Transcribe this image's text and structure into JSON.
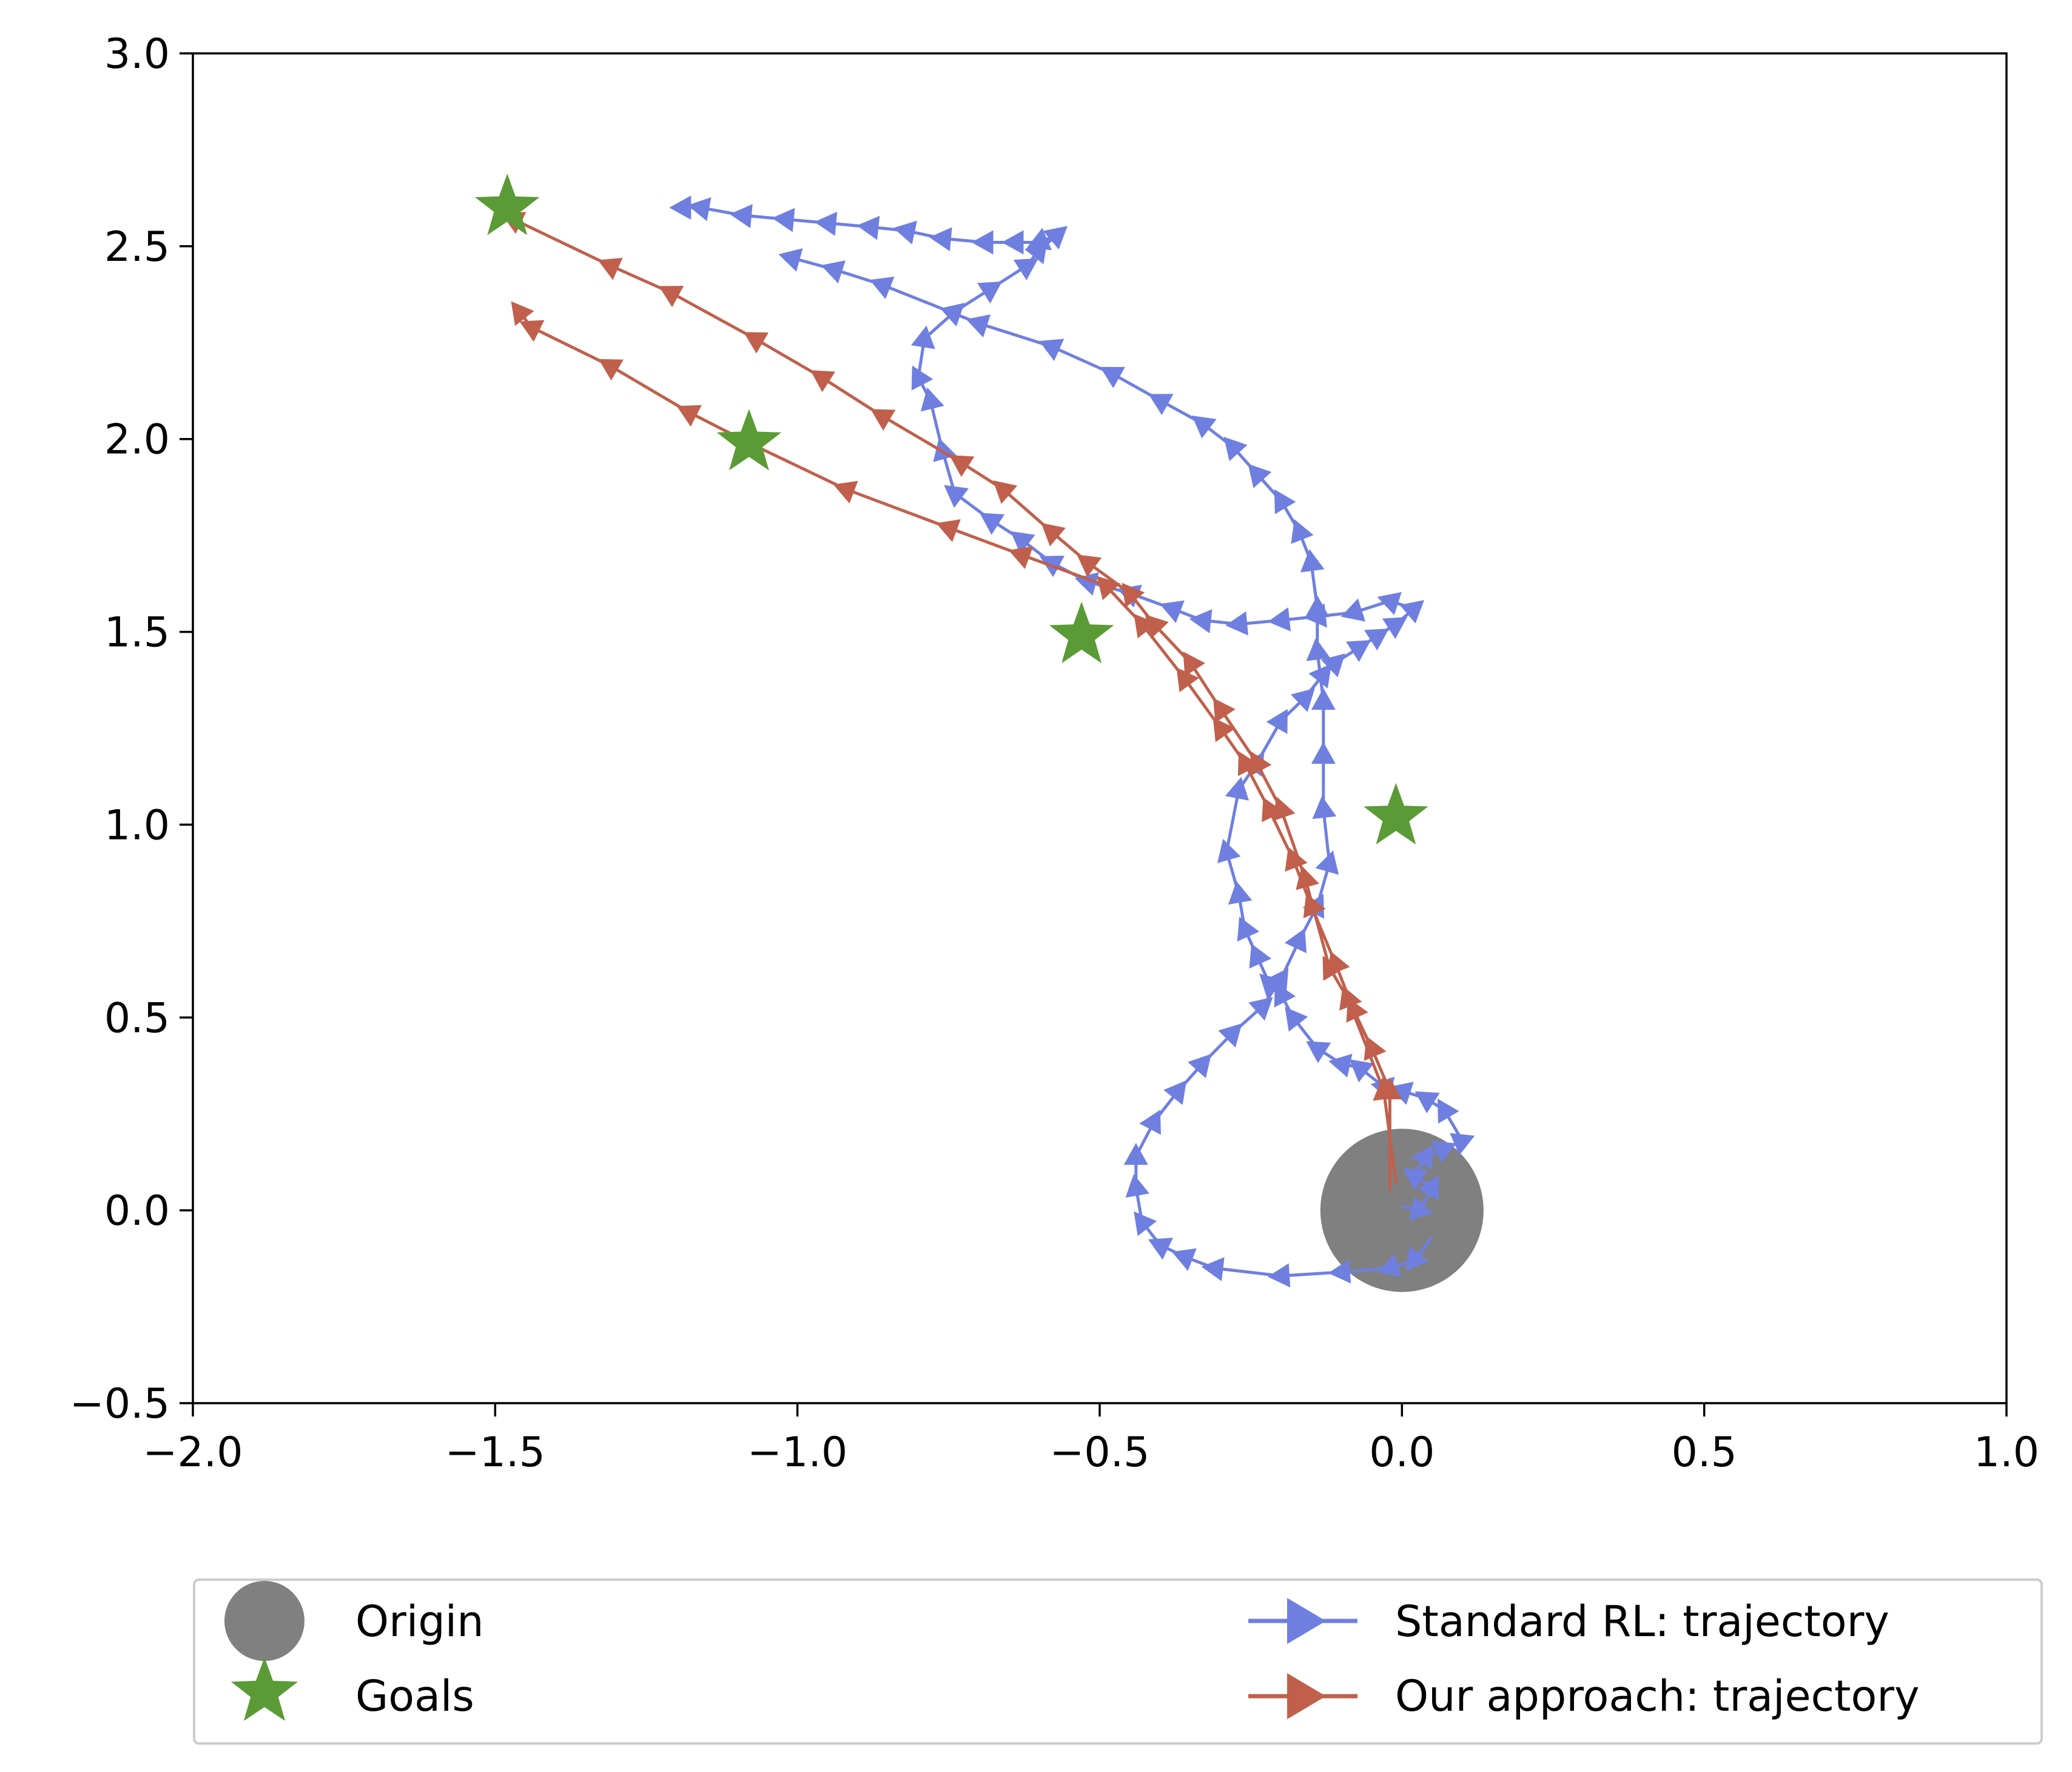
{
  "chart_data": {
    "type": "line",
    "title": "",
    "xlabel": "",
    "ylabel": "",
    "xlim": [
      -2.0,
      1.0
    ],
    "ylim": [
      -0.5,
      3.0
    ],
    "grid": false,
    "x_ticks": [
      -2.0,
      -1.5,
      -1.0,
      -0.5,
      0.0,
      0.5,
      1.0
    ],
    "x_tick_labels": [
      "−2.0",
      "−1.5",
      "−1.0",
      "−0.5",
      "0.0",
      "0.5",
      "1.0"
    ],
    "y_ticks": [
      -0.5,
      0.0,
      0.5,
      1.0,
      1.5,
      2.0,
      2.5,
      3.0
    ],
    "y_tick_labels": [
      "−0.5",
      "0.0",
      "0.5",
      "1.0",
      "1.5",
      "2.0",
      "2.5",
      "3.0"
    ],
    "legend": {
      "placement": "below-plot",
      "entries": [
        {
          "key": "origin",
          "label": "Origin"
        },
        {
          "key": "goals",
          "label": "Goals"
        },
        {
          "key": "standard",
          "label": "Standard RL: trajectory"
        },
        {
          "key": "ours",
          "label": "Our approach: trajectory"
        }
      ]
    },
    "origin": {
      "label": "Origin",
      "x": 0.0,
      "y": 0.0,
      "radius": 0.135,
      "color": "#808080"
    },
    "goals": {
      "label": "Goals",
      "color": "#5a9b35",
      "points": [
        {
          "x": -1.48,
          "y": 2.6
        },
        {
          "x": -1.08,
          "y": 1.99
        },
        {
          "x": -0.53,
          "y": 1.49
        },
        {
          "x": -0.01,
          "y": 1.02
        }
      ]
    },
    "series": [
      {
        "name": "Standard RL: trajectory",
        "color": "#6f7fe0",
        "marker": "triangle",
        "points": [
          [
            0.0,
            0.01
          ],
          [
            0.03,
            0.0
          ],
          [
            0.05,
            0.06
          ],
          [
            0.02,
            0.09
          ],
          [
            0.04,
            0.14
          ],
          [
            0.07,
            0.16
          ],
          [
            0.1,
            0.18
          ],
          [
            0.07,
            0.26
          ],
          [
            0.04,
            0.29
          ],
          [
            0.0,
            0.31
          ],
          [
            -0.03,
            0.32
          ],
          [
            -0.07,
            0.37
          ],
          [
            -0.1,
            0.38
          ],
          [
            -0.14,
            0.42
          ],
          [
            -0.18,
            0.5
          ],
          [
            -0.2,
            0.56
          ],
          [
            -0.22,
            0.59
          ],
          [
            -0.24,
            0.66
          ],
          [
            -0.26,
            0.73
          ],
          [
            -0.27,
            0.82
          ],
          [
            -0.29,
            0.93
          ],
          [
            -0.27,
            1.09
          ],
          [
            -0.24,
            1.16
          ],
          [
            -0.2,
            1.27
          ],
          [
            -0.16,
            1.33
          ],
          [
            -0.13,
            1.39
          ],
          [
            -0.11,
            1.42
          ],
          [
            -0.07,
            1.46
          ],
          [
            -0.04,
            1.49
          ],
          [
            -0.01,
            1.52
          ],
          [
            0.02,
            1.56
          ],
          [
            -0.02,
            1.58
          ],
          [
            -0.08,
            1.55
          ],
          [
            -0.14,
            1.54
          ],
          [
            -0.2,
            1.53
          ],
          [
            -0.27,
            1.52
          ],
          [
            -0.33,
            1.53
          ],
          [
            -0.38,
            1.56
          ],
          [
            -0.45,
            1.6
          ],
          [
            -0.52,
            1.63
          ],
          [
            -0.58,
            1.68
          ],
          [
            -0.63,
            1.74
          ],
          [
            -0.68,
            1.79
          ],
          [
            -0.74,
            1.86
          ],
          [
            -0.76,
            1.97
          ],
          [
            -0.78,
            2.1
          ],
          [
            -0.8,
            2.16
          ],
          [
            -0.79,
            2.26
          ],
          [
            -0.74,
            2.33
          ],
          [
            -0.68,
            2.39
          ],
          [
            -0.62,
            2.45
          ],
          [
            -0.6,
            2.49
          ],
          [
            -0.57,
            2.53
          ],
          [
            -0.6,
            2.51
          ],
          [
            -0.64,
            2.51
          ],
          [
            -0.69,
            2.51
          ],
          [
            -0.76,
            2.52
          ],
          [
            -0.82,
            2.54
          ],
          [
            -0.88,
            2.55
          ],
          [
            -0.95,
            2.56
          ],
          [
            -1.02,
            2.57
          ],
          [
            -1.09,
            2.58
          ],
          [
            -1.16,
            2.6
          ],
          [
            -1.19,
            2.6
          ]
        ]
      },
      {
        "name": "Standard RL: trajectory",
        "color": "#6f7fe0",
        "marker": "triangle",
        "points": [
          [
            0.05,
            -0.07
          ],
          [
            0.02,
            -0.13
          ],
          [
            -0.02,
            -0.15
          ],
          [
            -0.1,
            -0.16
          ],
          [
            -0.2,
            -0.17
          ],
          [
            -0.31,
            -0.15
          ],
          [
            -0.36,
            -0.12
          ],
          [
            -0.4,
            -0.09
          ],
          [
            -0.43,
            -0.03
          ],
          [
            -0.44,
            0.06
          ],
          [
            -0.44,
            0.14
          ],
          [
            -0.41,
            0.23
          ],
          [
            -0.37,
            0.31
          ],
          [
            -0.33,
            0.38
          ],
          [
            -0.28,
            0.46
          ],
          [
            -0.23,
            0.53
          ],
          [
            -0.2,
            0.6
          ],
          [
            -0.17,
            0.7
          ],
          [
            -0.14,
            0.79
          ],
          [
            -0.12,
            0.9
          ],
          [
            -0.13,
            1.04
          ],
          [
            -0.13,
            1.18
          ],
          [
            -0.13,
            1.32
          ],
          [
            -0.14,
            1.45
          ],
          [
            -0.14,
            1.56
          ],
          [
            -0.15,
            1.68
          ],
          [
            -0.17,
            1.76
          ],
          [
            -0.2,
            1.84
          ],
          [
            -0.24,
            1.91
          ],
          [
            -0.28,
            1.98
          ],
          [
            -0.33,
            2.04
          ],
          [
            -0.4,
            2.1
          ],
          [
            -0.48,
            2.17
          ],
          [
            -0.58,
            2.24
          ],
          [
            -0.7,
            2.3
          ],
          [
            -0.86,
            2.4
          ],
          [
            -0.94,
            2.44
          ],
          [
            -1.01,
            2.47
          ]
        ]
      },
      {
        "name": "Our approach: trajectory",
        "color": "#c0604c",
        "marker": "triangle",
        "points": [
          [
            -0.02,
            0.05
          ],
          [
            -0.02,
            0.31
          ],
          [
            -0.05,
            0.42
          ],
          [
            -0.08,
            0.52
          ],
          [
            -0.11,
            0.64
          ],
          [
            -0.15,
            0.79
          ],
          [
            -0.18,
            0.91
          ],
          [
            -0.22,
            1.04
          ],
          [
            -0.26,
            1.16
          ],
          [
            -0.3,
            1.25
          ],
          [
            -0.36,
            1.38
          ],
          [
            -0.43,
            1.52
          ],
          [
            -0.49,
            1.62
          ],
          [
            -0.63,
            1.7
          ],
          [
            -0.75,
            1.77
          ],
          [
            -0.92,
            1.87
          ],
          [
            -1.08,
            1.99
          ],
          [
            -1.18,
            2.07
          ],
          [
            -1.31,
            2.19
          ],
          [
            -1.44,
            2.29
          ],
          [
            -1.46,
            2.33
          ]
        ]
      },
      {
        "name": "Our approach: trajectory",
        "color": "#c0604c",
        "marker": "triangle",
        "points": [
          [
            -0.01,
            0.07
          ],
          [
            -0.03,
            0.31
          ],
          [
            -0.09,
            0.55
          ],
          [
            -0.12,
            0.63
          ],
          [
            -0.16,
            0.86
          ],
          [
            -0.2,
            1.04
          ],
          [
            -0.24,
            1.16
          ],
          [
            -0.3,
            1.3
          ],
          [
            -0.35,
            1.42
          ],
          [
            -0.41,
            1.52
          ],
          [
            -0.45,
            1.6
          ],
          [
            -0.52,
            1.68
          ],
          [
            -0.58,
            1.76
          ],
          [
            -0.66,
            1.87
          ],
          [
            -0.73,
            1.94
          ],
          [
            -0.86,
            2.06
          ],
          [
            -0.96,
            2.16
          ],
          [
            -1.07,
            2.26
          ],
          [
            -1.21,
            2.38
          ],
          [
            -1.31,
            2.45
          ],
          [
            -1.47,
            2.57
          ]
        ]
      }
    ]
  }
}
